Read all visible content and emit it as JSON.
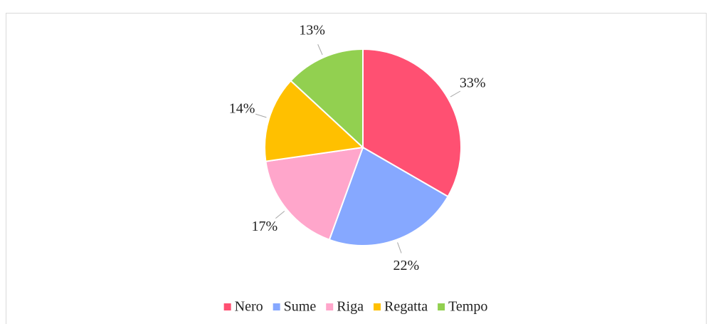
{
  "chart_data": {
    "type": "pie",
    "categories": [
      "Nero",
      "Sume",
      "Riga",
      "Regatta",
      "Tempo"
    ],
    "values": [
      33,
      22,
      17,
      14,
      13
    ],
    "value_labels": [
      "33%",
      "22%",
      "17%",
      "14%",
      "13%"
    ],
    "colors": [
      "#ff5072",
      "#86a8ff",
      "#ffa6cb",
      "#ffc000",
      "#92d050"
    ],
    "legend": "bottom"
  }
}
